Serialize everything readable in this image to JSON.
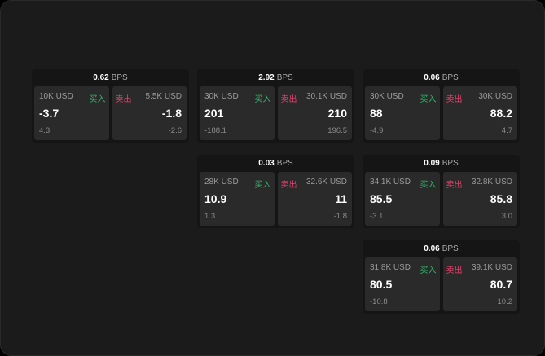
{
  "unit": "BPS",
  "buy_label": "买入",
  "sell_label": "卖出",
  "colors": {
    "buy": "#2fb86a",
    "sell": "#e0406a"
  },
  "cards": [
    {
      "spread": "0.62",
      "bid": {
        "qty": "10K USD",
        "price": "-3.7",
        "change": "4.3"
      },
      "ask": {
        "qty": "5.5K USD",
        "price": "-1.8",
        "change": "-2.6"
      }
    },
    {
      "spread": "2.92",
      "bid": {
        "qty": "30K USD",
        "price": "201",
        "change": "-188.1"
      },
      "ask": {
        "qty": "30.1K USD",
        "price": "210",
        "change": "196.5"
      }
    },
    {
      "spread": "0.06",
      "bid": {
        "qty": "30K USD",
        "price": "88",
        "change": "-4.9"
      },
      "ask": {
        "qty": "30K USD",
        "price": "88.2",
        "change": "4.7"
      }
    },
    {
      "spread": "0.03",
      "bid": {
        "qty": "28K USD",
        "price": "10.9",
        "change": "1.3"
      },
      "ask": {
        "qty": "32.6K USD",
        "price": "11",
        "change": "-1.8"
      }
    },
    {
      "spread": "0.09",
      "bid": {
        "qty": "34.1K USD",
        "price": "85.5",
        "change": "-3.1"
      },
      "ask": {
        "qty": "32.8K USD",
        "price": "85.8",
        "change": "3.0"
      }
    },
    {
      "spread": "0.06",
      "bid": {
        "qty": "31.8K USD",
        "price": "80.5",
        "change": "-10.8"
      },
      "ask": {
        "qty": "39.1K USD",
        "price": "80.7",
        "change": "10.2"
      }
    }
  ]
}
